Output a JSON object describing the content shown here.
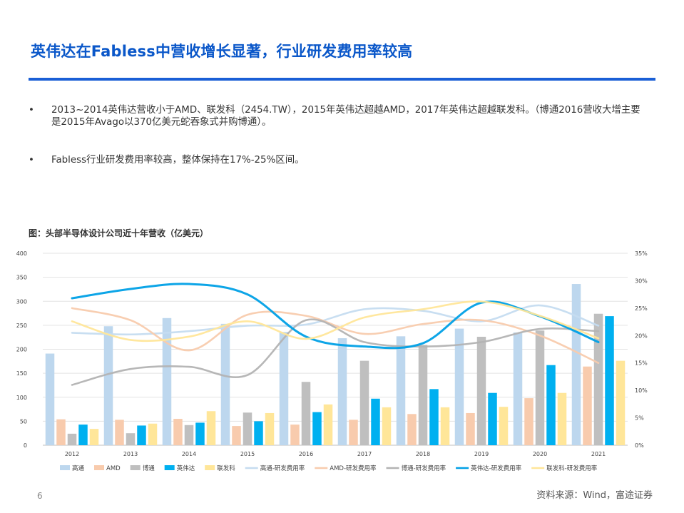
{
  "slide": {
    "title": "英伟达在Fabless中营收增长显著，行业研发费用率较高",
    "bullets": [
      {
        "marker": "•",
        "text": "2013~2014英伟达营收小于AMD、联发科（2454.TW），2015年英伟达超越AMD，2017年英伟达超越联发科。（博通2016营收大增主要是2015年Avago以370亿美元蛇吞象式并购博通）。"
      },
      {
        "marker": "•",
        "text": "Fabless行业研发费用率较高，整体保持在17%-25%区间。"
      }
    ],
    "chart_caption": "图：头部半导体设计公司近十年营收（亿美元）",
    "page_number": "6",
    "source": "资料来源：Wind，富途证券"
  },
  "chart_data": {
    "type": "bar",
    "categories": [
      "2012",
      "2013",
      "2014",
      "2015",
      "2016",
      "2017",
      "2018",
      "2019",
      "2020",
      "2021"
    ],
    "y_left": {
      "min": 0,
      "max": 400,
      "ticks": [
        "0",
        "50",
        "100",
        "150",
        "200",
        "250",
        "300",
        "350",
        "400"
      ]
    },
    "y_right": {
      "min": 0,
      "max": 35,
      "ticks": [
        "0%",
        "5%",
        "10%",
        "15%",
        "20%",
        "25%",
        "30%",
        "35%"
      ]
    },
    "grid": true,
    "legend_position": "bottom",
    "series": [
      {
        "name": "高通",
        "kind": "bar",
        "color": "#bdd7ee",
        "values": [
          191,
          248,
          265,
          253,
          236,
          223,
          227,
          243,
          235,
          336
        ]
      },
      {
        "name": "AMD",
        "kind": "bar",
        "color": "#f8cbad",
        "values": [
          54,
          53,
          55,
          40,
          43,
          53,
          65,
          67,
          98,
          164
        ]
      },
      {
        "name": "博通",
        "kind": "bar",
        "color": "#bfbfbf",
        "values": [
          24,
          25,
          42,
          68,
          132,
          176,
          209,
          226,
          239,
          274
        ]
      },
      {
        "name": "英伟达",
        "kind": "bar",
        "color": "#00b0f0",
        "values": [
          43,
          41,
          47,
          50,
          69,
          97,
          117,
          109,
          167,
          269
        ]
      },
      {
        "name": "联发科",
        "kind": "bar",
        "color": "#ffe699",
        "values": [
          34,
          45,
          71,
          67,
          85,
          79,
          79,
          80,
          109,
          176
        ]
      },
      {
        "name": "高通-研发费用率",
        "kind": "line",
        "color": "#c5dcf0",
        "values": [
          20.5,
          20.2,
          20.8,
          21.8,
          22.0,
          24.8,
          24.5,
          22.6,
          25.5,
          21.8
        ]
      },
      {
        "name": "AMD-研发费用率",
        "kind": "line",
        "color": "#f8cbad",
        "values": [
          25.0,
          22.8,
          17.3,
          23.8,
          23.6,
          20.3,
          22.1,
          22.8,
          20.0,
          15.0
        ]
      },
      {
        "name": "博通-研发费用率",
        "kind": "line",
        "color": "#b3b3b3",
        "values": [
          11.0,
          13.9,
          14.3,
          12.8,
          22.8,
          18.8,
          18.0,
          18.8,
          21.2,
          20.8
        ]
      },
      {
        "name": "英伟达-研发费用率",
        "kind": "line",
        "color": "#00a0e6",
        "values": [
          26.8,
          28.5,
          29.4,
          27.5,
          19.8,
          18.0,
          18.6,
          26.0,
          23.5,
          18.8
        ]
      },
      {
        "name": "联发科-研发费用率",
        "kind": "line",
        "color": "#ffe699",
        "values": [
          22.6,
          19.2,
          19.8,
          22.6,
          19.4,
          23.3,
          24.8,
          26.2,
          23.6,
          19.5
        ]
      }
    ]
  }
}
